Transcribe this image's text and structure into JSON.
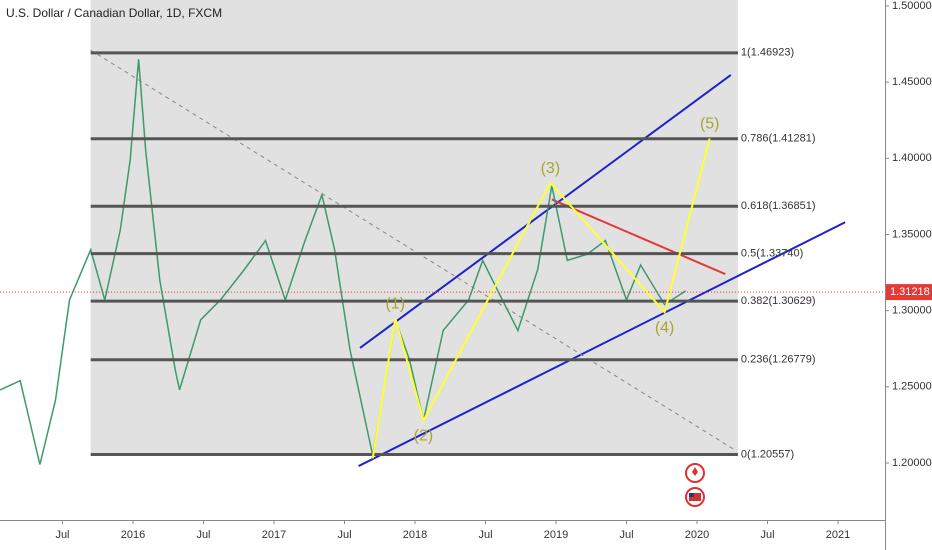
{
  "chart_data": {
    "type": "line",
    "title": "U.S. Dollar / Canadian Dollar, 1D, FXCM",
    "xlim": [
      2015.057,
      2021.333
    ],
    "ylim": [
      1.1626,
      1.5039
    ],
    "xticks": [
      {
        "value": 2015.5,
        "label": "Jul"
      },
      2016,
      {
        "value": 2016.5,
        "label": "Jul"
      },
      2017,
      {
        "value": 2017.5,
        "label": "Jul"
      },
      2018,
      {
        "value": 2018.5,
        "label": "Jul"
      },
      2019,
      {
        "value": 2019.5,
        "label": "Jul"
      },
      2020,
      {
        "value": 2020.5,
        "label": "Jul"
      },
      2021
    ],
    "yticks": [
      {
        "value": 1.2,
        "label": "1.20000"
      },
      {
        "value": 1.25,
        "label": "1.25000"
      },
      {
        "value": 1.3,
        "label": "1.30000"
      },
      {
        "value": 1.35,
        "label": "1.35000"
      },
      {
        "value": 1.4,
        "label": "1.40000"
      },
      {
        "value": 1.45,
        "label": "1.45000"
      },
      {
        "value": 1.5,
        "label": "1.50000"
      }
    ],
    "series": [
      {
        "color": "#3d9a6a",
        "x": [
          2015.057,
          2015.2,
          2015.34,
          2015.45,
          2015.55,
          2015.7,
          2015.8,
          2015.91,
          2015.98,
          2016.04,
          2016.09,
          2016.19,
          2016.3,
          2016.33,
          2016.48,
          2016.62,
          2016.79,
          2016.94,
          2017.08,
          2017.22,
          2017.34,
          2017.43,
          2017.54,
          2017.7,
          2017.79,
          2017.86,
          2017.96,
          2018.06,
          2018.2,
          2018.38,
          2018.48,
          2018.62,
          2018.73,
          2018.87,
          2018.97,
          2019.08,
          2019.22,
          2019.35,
          2019.5,
          2019.6,
          2019.77,
          2019.92
        ],
        "values": [
          1.248,
          1.254,
          1.199,
          1.241,
          1.307,
          1.34,
          1.307,
          1.353,
          1.399,
          1.465,
          1.405,
          1.32,
          1.261,
          1.248,
          1.294,
          1.307,
          1.327,
          1.346,
          1.307,
          1.346,
          1.376,
          1.34,
          1.274,
          1.205,
          1.254,
          1.294,
          1.268,
          1.228,
          1.287,
          1.307,
          1.333,
          1.307,
          1.287,
          1.327,
          1.382,
          1.333,
          1.337,
          1.346,
          1.307,
          1.33,
          1.304,
          1.313
        ]
      }
    ],
    "current_price": {
      "value": 1.31218,
      "color": "#e53935"
    },
    "fib": {
      "x": [
        2015.7,
        2020.29
      ],
      "color": "#555555",
      "shade": "#e1e1e1",
      "levels": [
        {
          "value": 1.46923,
          "label": "1(1.46923)"
        },
        {
          "value": 1.41281,
          "label": "0.786(1.41281)"
        },
        {
          "value": 1.36851,
          "label": "0.618(1.36851)"
        },
        {
          "value": 1.3374,
          "label": "0.5(1.33740)"
        },
        {
          "value": 1.30629,
          "label": "0.382(1.30629)"
        },
        {
          "value": 1.26779,
          "label": "0.236(1.26779)"
        },
        {
          "value": 1.20557,
          "label": "0(1.20557)"
        }
      ]
    },
    "trendlines": [
      {
        "color": "#1e22c8",
        "x": [
          2017.61,
          2020.24
        ],
        "values": [
          1.2755,
          1.4547
        ]
      },
      {
        "color": "#1e22c8",
        "x": [
          2017.6,
          2021.05
        ],
        "values": [
          1.198,
          1.358
        ]
      },
      {
        "color": "#e53935",
        "x": [
          2018.97,
          2020.2
        ],
        "values": [
          1.373,
          1.324
        ]
      },
      {
        "color": "#888888",
        "dashed": true,
        "x": [
          2015.7,
          2020.27
        ],
        "values": [
          1.471,
          1.2085
        ]
      }
    ],
    "wave": {
      "color": "#ffff33",
      "x": [
        2017.7,
        2017.86,
        2018.06,
        2018.96,
        2019.77,
        2020.09
      ],
      "values": [
        1.203,
        1.295,
        1.228,
        1.384,
        1.299,
        1.413
      ],
      "labels": [
        null,
        "(1)",
        "(2)",
        "(3)",
        "(4)",
        "(5)"
      ]
    }
  }
}
